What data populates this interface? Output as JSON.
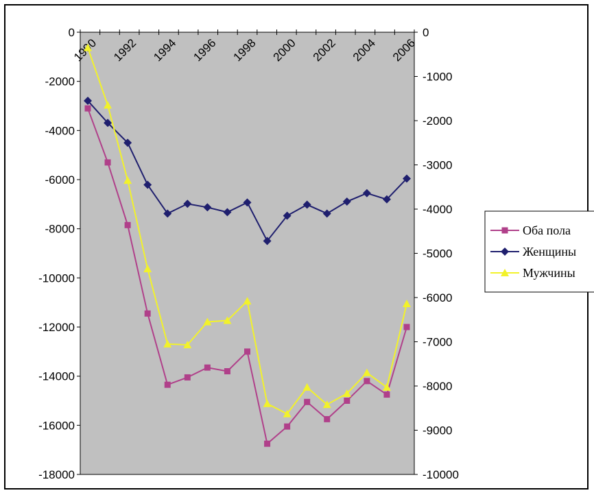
{
  "chart_data": {
    "type": "line",
    "x": [
      1990,
      1991,
      1992,
      1993,
      1994,
      1995,
      1996,
      1997,
      1998,
      1999,
      2000,
      2001,
      2002,
      2003,
      2004,
      2005,
      2006
    ],
    "x_tick_labels": [
      "1990",
      "1992",
      "1994",
      "1996",
      "1998",
      "2000",
      "2002",
      "2004",
      "2006"
    ],
    "y_left": {
      "range": [
        -18000,
        0
      ],
      "ticks": [
        "0",
        "-2000",
        "-4000",
        "-6000",
        "-8000",
        "-10000",
        "-12000",
        "-14000",
        "-16000",
        "-18000"
      ]
    },
    "y_right": {
      "range": [
        -10000,
        0
      ],
      "ticks": [
        "0",
        "-1000",
        "-2000",
        "-3000",
        "-4000",
        "-5000",
        "-6000",
        "-7000",
        "-8000",
        "-9000",
        "-10000"
      ]
    },
    "grid": false,
    "plot_background": "#c0c0c0",
    "legend_position": "right",
    "series": [
      {
        "name": "Оба пола",
        "axis": "left",
        "color": "#b0408a",
        "marker": "square",
        "values": [
          -3100,
          -5300,
          -7850,
          -11450,
          -14350,
          -14050,
          -13650,
          -13800,
          -13000,
          -16750,
          -16050,
          -15050,
          -15750,
          -15000,
          -14200,
          -14750,
          -12000
        ]
      },
      {
        "name": "Женщины",
        "axis": "right",
        "color": "#1f1f6e",
        "marker": "diamond",
        "values": [
          -1550,
          -2050,
          -2500,
          -3450,
          -4100,
          -3880,
          -3960,
          -4070,
          -3850,
          -4720,
          -4150,
          -3900,
          -4100,
          -3830,
          -3640,
          -3780,
          -3310
        ]
      },
      {
        "name": "Мужчины",
        "axis": "right",
        "color": "#f2f22a",
        "marker": "triangle",
        "values": [
          -350,
          -1650,
          -3350,
          -5350,
          -7050,
          -7070,
          -6550,
          -6520,
          -6080,
          -8400,
          -8630,
          -8030,
          -8420,
          -8170,
          -7700,
          -8030,
          -6140
        ]
      }
    ]
  }
}
